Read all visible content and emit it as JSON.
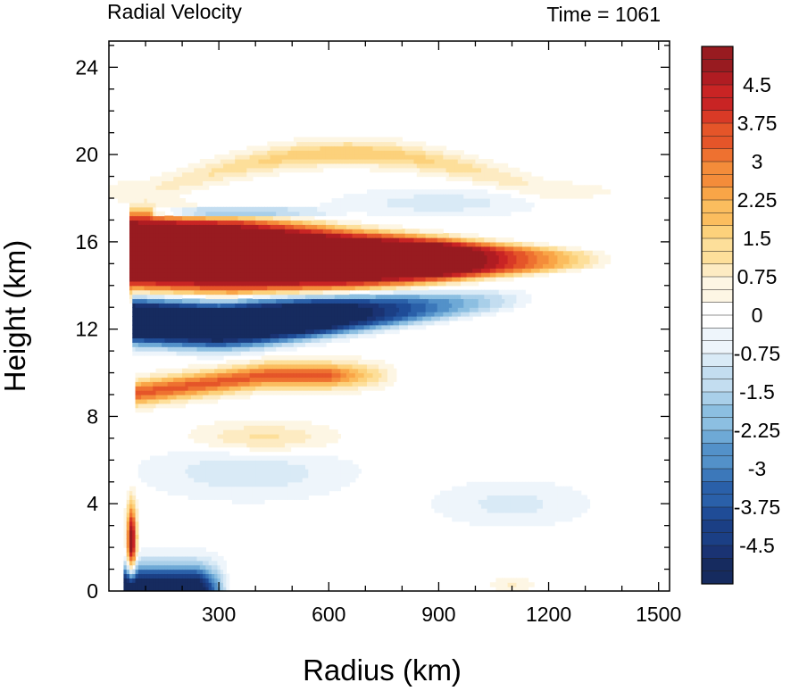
{
  "chart_data": {
    "type": "heatmap",
    "title_left": "Radial Velocity",
    "title_right": "Time = 1061",
    "xlabel": "Radius (km)",
    "ylabel": "Height (km)",
    "xlim": [
      0,
      1530
    ],
    "ylim": [
      0,
      25.2
    ],
    "x_ticks": [
      300,
      600,
      900,
      1200,
      1500
    ],
    "y_ticks": [
      0,
      4,
      8,
      12,
      16,
      20,
      24
    ],
    "colorbar": {
      "min": -5.25,
      "max": 5.25,
      "step": 0.25,
      "labels": [
        "4.5",
        "3.75",
        "3",
        "2.25",
        "1.5",
        "0.75",
        "0",
        "-0.75",
        "-1.5",
        "-2.25",
        "-3",
        "-3.75",
        "-4.5"
      ],
      "label_values": [
        4.5,
        3.75,
        3,
        2.25,
        1.5,
        0.75,
        0,
        -0.75,
        -1.5,
        -2.25,
        -3,
        -3.75,
        -4.5
      ],
      "colors_positive": [
        "#fdf6e4",
        "#fdebc2",
        "#fddf9a",
        "#fcd17b",
        "#fbbd5e",
        "#f9a547",
        "#f48c3a",
        "#ee7130",
        "#e55529",
        "#d93a26",
        "#c92424",
        "#b01c22",
        "#981b20"
      ],
      "colors_negative": [
        "#eef5fb",
        "#d9eaf6",
        "#c3ddf0",
        "#a9cfe9",
        "#8cbfe1",
        "#6ea9d6",
        "#5391c9",
        "#3c78ba",
        "#2a60a9",
        "#1f4c97",
        "#1b3f85",
        "#1a3373",
        "#162b5f"
      ]
    },
    "features": [
      {
        "name": "upper outflow",
        "sign": "positive",
        "r_range": [
          60,
          1350
        ],
        "z_range": [
          13.5,
          17.3
        ],
        "peak": 5.5
      },
      {
        "name": "upper inflow",
        "sign": "negative",
        "r_range": [
          70,
          1000
        ],
        "z_range": [
          10.8,
          13.6
        ],
        "peak": -5.5
      },
      {
        "name": "mid outflow",
        "sign": "positive",
        "r_range": [
          80,
          720
        ],
        "z_range": [
          8.5,
          10.6
        ],
        "peak": 3.5
      },
      {
        "name": "thin inflow above outflow",
        "sign": "negative",
        "r_range": [
          130,
          520
        ],
        "z_range": [
          17.1,
          17.6
        ],
        "peak": -3.5
      },
      {
        "name": "top outflow arc",
        "sign": "positive",
        "r_range": [
          100,
          1200
        ],
        "z_range": [
          17.6,
          20.6
        ],
        "peak": 1.8
      },
      {
        "name": "boundary layer inflow",
        "sign": "negative",
        "r_range": [
          40,
          320
        ],
        "z_range": [
          0,
          1.4
        ],
        "peak": -5.5
      },
      {
        "name": "low level outflow",
        "sign": "positive",
        "r_range": [
          40,
          80
        ],
        "z_range": [
          0.5,
          4.2
        ],
        "peak": 5.0
      }
    ]
  }
}
